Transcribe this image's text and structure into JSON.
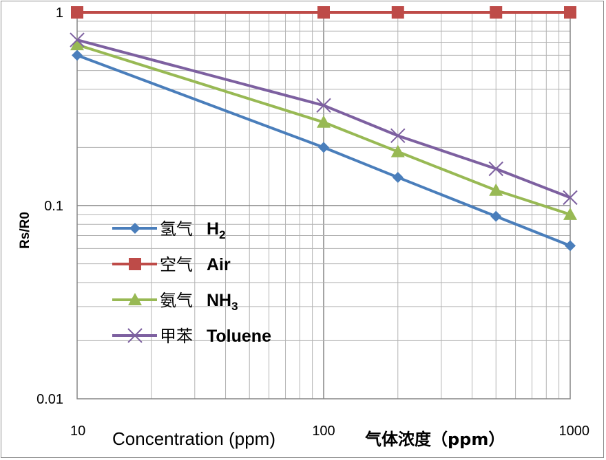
{
  "chart_data": {
    "type": "line",
    "x_scale": "log",
    "y_scale": "log",
    "xlim": [
      10,
      1000
    ],
    "ylim": [
      0.01,
      1
    ],
    "x_tick_labels": [
      "10",
      "100",
      "1000"
    ],
    "y_tick_labels": [
      "1",
      "0.1",
      "0.01"
    ],
    "xlabel": "Concentration (ppm)",
    "xlabel_cn": "气体浓度（ppm）",
    "ylabel": "Rs/R0",
    "grid": true,
    "legend_position": "left",
    "series": [
      {
        "name_cn": "氢气",
        "name": "H2",
        "color": "#4a7ebb",
        "marker": "diamond",
        "x": [
          10,
          100,
          200,
          500,
          1000
        ],
        "y": [
          0.6,
          0.2,
          0.14,
          0.088,
          0.062
        ]
      },
      {
        "name_cn": "空气",
        "name": "Air",
        "color": "#be4b48",
        "marker": "square",
        "x": [
          10,
          100,
          200,
          500,
          1000
        ],
        "y": [
          1,
          1,
          1,
          1,
          1
        ]
      },
      {
        "name_cn": "氨气",
        "name": "NH3",
        "color": "#98b954",
        "marker": "triangle",
        "x": [
          10,
          100,
          200,
          500,
          1000
        ],
        "y": [
          0.68,
          0.27,
          0.19,
          0.12,
          0.09
        ]
      },
      {
        "name_cn": "甲苯",
        "name": "Toluene",
        "color": "#7d60a0",
        "marker": "x",
        "x": [
          10,
          100,
          200,
          500,
          1000
        ],
        "y": [
          0.72,
          0.33,
          0.23,
          0.155,
          0.11
        ]
      }
    ]
  }
}
